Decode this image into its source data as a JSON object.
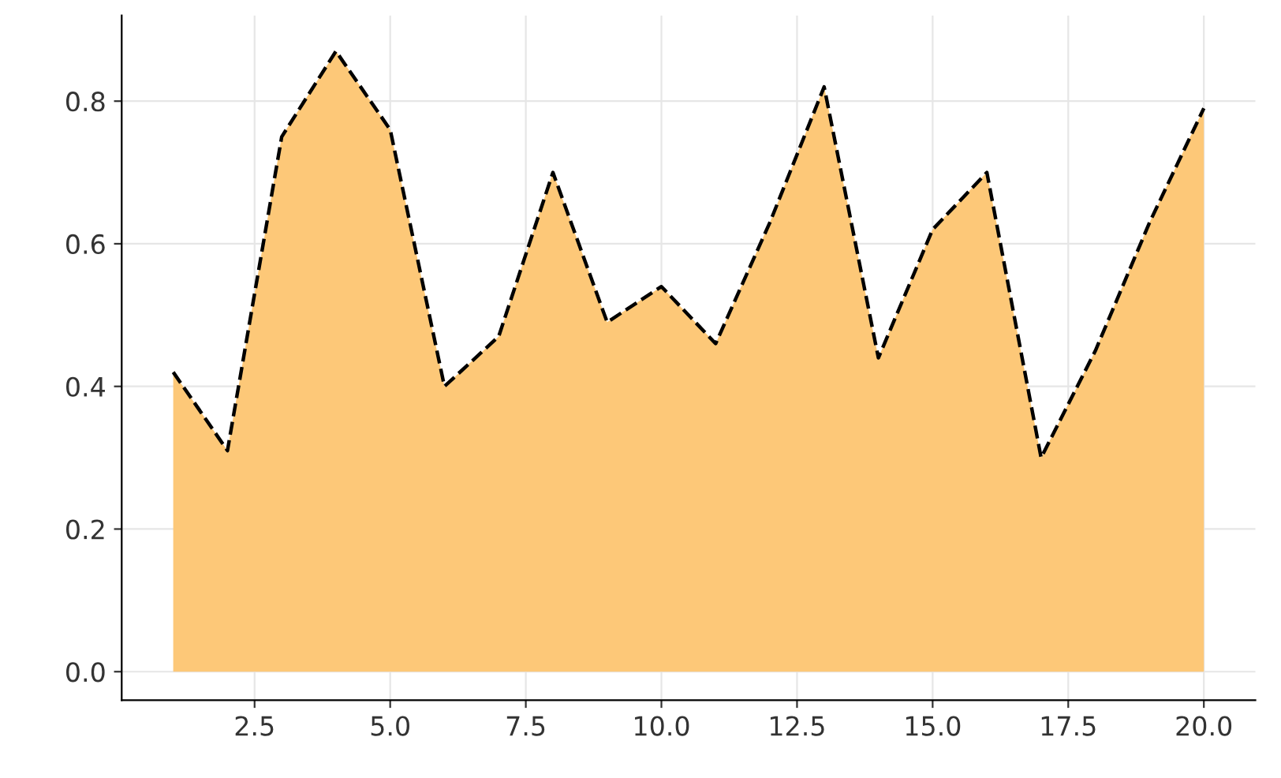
{
  "chart_data": {
    "type": "area",
    "x": [
      1,
      2,
      3,
      4,
      5,
      6,
      7,
      8,
      9,
      10,
      11,
      12,
      13,
      14,
      15,
      16,
      17,
      18,
      19,
      20
    ],
    "series": [
      {
        "color": "#fdc878",
        "values": [
          0.42,
          0.31,
          0.75,
          0.87,
          0.76,
          0.4,
          0.47,
          0.7,
          0.49,
          0.54,
          0.46,
          0.63,
          0.82,
          0.44,
          0.62,
          0.7,
          0.3,
          0.45,
          0.63,
          0.79
        ]
      }
    ],
    "line_style": "dashed",
    "xlim": [
      0.05,
      20.95
    ],
    "ylim": [
      -0.04,
      0.92
    ],
    "xticks": [
      {
        "value": 2.5,
        "label": "2.5"
      },
      {
        "value": 5,
        "label": "5.0"
      },
      {
        "value": 7.5,
        "label": "7.5"
      },
      {
        "value": 10,
        "label": "10.0"
      },
      {
        "value": 12.5,
        "label": "12.5"
      },
      {
        "value": 15,
        "label": "15.0"
      },
      {
        "value": 17.5,
        "label": "17.5"
      },
      {
        "value": 20,
        "label": "20.0"
      }
    ],
    "yticks": [
      {
        "value": 0,
        "label": "0.0"
      },
      {
        "value": 0.2,
        "label": "0.2"
      },
      {
        "value": 0.4,
        "label": "0.4"
      },
      {
        "value": 0.6,
        "label": "0.6"
      },
      {
        "value": 0.8,
        "label": "0.8"
      }
    ],
    "grid": true
  }
}
